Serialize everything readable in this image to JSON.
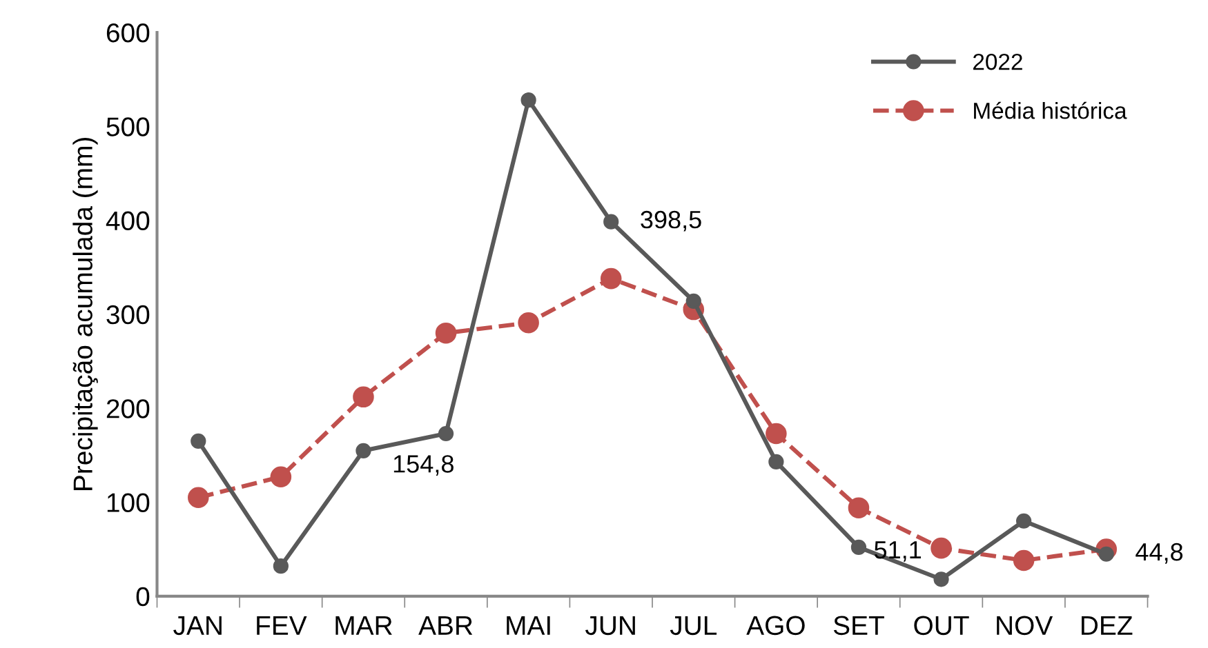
{
  "chart_data": {
    "type": "line",
    "ylabel": "Precipitação acumulada (mm)",
    "categories": [
      "JAN",
      "FEV",
      "MAR",
      "ABR",
      "MAI",
      "JUN",
      "JUL",
      "AGO",
      "SET",
      "OUT",
      "NOV",
      "DEZ"
    ],
    "series": [
      {
        "name": "2022",
        "color": "#595959",
        "line_style": "solid",
        "values": [
          165,
          32,
          154.8,
          173,
          528,
          398.5,
          314,
          143,
          52,
          18,
          80,
          44.8
        ],
        "value_labels": [
          null,
          null,
          "154,8",
          null,
          null,
          "398,5",
          null,
          null,
          null,
          null,
          null,
          "44,8"
        ]
      },
      {
        "name": "Média histórica",
        "color": "#c0504d",
        "line_style": "dashed",
        "values": [
          105,
          127,
          212,
          280,
          291,
          338,
          305,
          173,
          94,
          51.1,
          38,
          50
        ],
        "value_labels": [
          null,
          null,
          null,
          null,
          null,
          null,
          null,
          null,
          null,
          "51,1",
          null,
          null
        ]
      }
    ],
    "ylim": [
      0,
      600
    ],
    "yticks": [
      0,
      100,
      200,
      300,
      400,
      500,
      600
    ],
    "marker": "circle",
    "grid": false,
    "legend": "top right"
  }
}
